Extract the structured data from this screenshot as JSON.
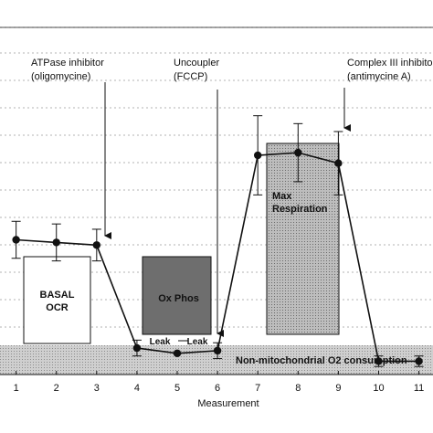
{
  "chart_data": {
    "type": "line",
    "title": "",
    "xlabel": "Measurement",
    "ylabel": "",
    "xlim": [
      0.6,
      11.35
    ],
    "ylim": [
      0,
      100
    ],
    "x": [
      1,
      2,
      3,
      4,
      5,
      6,
      7,
      8,
      9,
      10,
      11
    ],
    "x_tick_labels": [
      "1",
      "2",
      "3",
      "4",
      "5",
      "6",
      "7",
      "8",
      "9",
      "10",
      "11"
    ],
    "grid": true,
    "series": [
      {
        "values": [
          50,
          49,
          48,
          9,
          7,
          8,
          82,
          83,
          79,
          4,
          4
        ],
        "error": [
          7,
          7,
          6,
          3,
          0,
          3,
          15,
          11,
          12,
          2,
          2
        ]
      }
    ],
    "blocks": [
      {
        "label_lines": [
          "BASAL",
          "OCR"
        ],
        "x0": 1.2,
        "x1": 2.9,
        "y0": 5,
        "y1": 47,
        "fill": "#ffffff"
      },
      {
        "label_lines": [
          "Ox Phos"
        ],
        "x0": 4.15,
        "x1": 5.8,
        "y0": 9,
        "y1": 47,
        "fill": "#6e6e6e"
      },
      {
        "label_lines": [
          "Max",
          "Respiration"
        ],
        "x0": 7.2,
        "x1": 8.95,
        "y0": 9,
        "y1": 79,
        "fill": "#b4b4b4"
      }
    ],
    "baseline_band": {
      "label": "Non-mitochondrial O2 consumption",
      "y0": 0,
      "y1": 5,
      "fill": "#c8c8c8"
    },
    "leak_labels": [
      "Leak",
      "Leak"
    ],
    "injections": [
      {
        "label_lines": [
          "ATPase inhibitor",
          "(oligomycine)"
        ],
        "x": 3.2
      },
      {
        "label_lines": [
          "Uncoupler",
          "(FCCP)"
        ],
        "x": 6.1
      },
      {
        "label_lines": [
          "Complex III inhibitor",
          "(antimycine A)"
        ],
        "x": 9.05
      }
    ]
  }
}
